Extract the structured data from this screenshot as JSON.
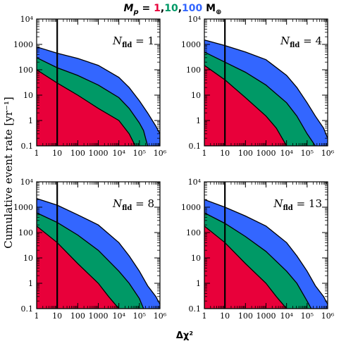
{
  "title": {
    "prefix": "M",
    "prefix_sub": "p",
    "equals": " = ",
    "v1": "1",
    "c1": ",",
    "v2": "10",
    "c2": ",",
    "v3": "100",
    "unit": " M",
    "unit_sub": "⊕",
    "colors": {
      "v1": "#e8003a",
      "v2": "#009966",
      "v3": "#3366ff",
      "text": "#000000"
    }
  },
  "ylabel": "Cumulative event rate [yr⁻¹]",
  "xlabel": "Δχ²",
  "xticks": [
    "1",
    "10",
    "100",
    "1000",
    "10⁴",
    "10⁵",
    "10⁶"
  ],
  "yticks": [
    "0.1",
    "1",
    "10",
    "100",
    "1000",
    "10⁴"
  ],
  "colors": {
    "red": "#e8003a",
    "green": "#009966",
    "blue": "#3366ff",
    "line": "#000000"
  },
  "chart_data": [
    {
      "type": "area",
      "annotation": {
        "sym": "N",
        "sub": "fld",
        "eq": " = ",
        "val": "1"
      },
      "xscale": "log",
      "yscale": "log",
      "xlim": [
        1,
        1000000
      ],
      "ylim": [
        0.1,
        10000
      ],
      "vline_x": 10,
      "series": [
        {
          "color": "blue",
          "points": [
            [
              1,
              800
            ],
            [
              10,
              450
            ],
            [
              100,
              280
            ],
            [
              1000,
              150
            ],
            [
              10000,
              50
            ],
            [
              31623,
              20
            ],
            [
              100000,
              6
            ],
            [
              251189,
              2
            ],
            [
              630957,
              0.6
            ],
            [
              1000000,
              0.3
            ]
          ]
        },
        {
          "color": "green",
          "points": [
            [
              1,
              300
            ],
            [
              10,
              120
            ],
            [
              100,
              60
            ],
            [
              1000,
              25
            ],
            [
              10000,
              8
            ],
            [
              31623,
              3
            ],
            [
              100000,
              0.8
            ],
            [
              158489,
              0.4
            ],
            [
              251189,
              0.1
            ]
          ]
        },
        {
          "color": "red",
          "points": [
            [
              1,
              100
            ],
            [
              10,
              30
            ],
            [
              100,
              10
            ],
            [
              1000,
              3
            ],
            [
              10000,
              1
            ],
            [
              31623,
              0.3
            ],
            [
              63096,
              0.1
            ]
          ]
        }
      ]
    },
    {
      "type": "area",
      "annotation": {
        "sym": "N",
        "sub": "fld",
        "eq": " = ",
        "val": "4"
      },
      "xscale": "log",
      "yscale": "log",
      "xlim": [
        1,
        1000000
      ],
      "ylim": [
        0.1,
        10000
      ],
      "vline_x": 10,
      "series": [
        {
          "color": "blue",
          "points": [
            [
              1,
              1500
            ],
            [
              10,
              900
            ],
            [
              100,
              500
            ],
            [
              1000,
              250
            ],
            [
              10000,
              60
            ],
            [
              31623,
              20
            ],
            [
              100000,
              5
            ],
            [
              251189,
              1.5
            ],
            [
              630957,
              0.5
            ],
            [
              1000000,
              0.2
            ]
          ]
        },
        {
          "color": "green",
          "points": [
            [
              1,
              500
            ],
            [
              10,
              200
            ],
            [
              100,
              80
            ],
            [
              1000,
              25
            ],
            [
              10000,
              5
            ],
            [
              31623,
              1.5
            ],
            [
              100000,
              0.3
            ],
            [
              251189,
              0.1
            ]
          ]
        },
        {
          "color": "red",
          "points": [
            [
              1,
              150
            ],
            [
              10,
              40
            ],
            [
              100,
              8
            ],
            [
              1000,
              1.5
            ],
            [
              3162,
              0.5
            ],
            [
              10000,
              0.1
            ]
          ]
        }
      ]
    },
    {
      "type": "area",
      "annotation": {
        "sym": "N",
        "sub": "fld",
        "eq": " = ",
        "val": "8"
      },
      "xscale": "log",
      "yscale": "log",
      "xlim": [
        1,
        1000000
      ],
      "ylim": [
        0.1,
        10000
      ],
      "vline_x": 10,
      "series": [
        {
          "color": "blue",
          "points": [
            [
              1,
              2200
            ],
            [
              10,
              1200
            ],
            [
              100,
              500
            ],
            [
              1000,
              200
            ],
            [
              10000,
              40
            ],
            [
              31623,
              12
            ],
            [
              100000,
              3
            ],
            [
              251189,
              0.8
            ],
            [
              630957,
              0.3
            ],
            [
              1000000,
              0.15
            ]
          ]
        },
        {
          "color": "green",
          "points": [
            [
              1,
              600
            ],
            [
              10,
              250
            ],
            [
              100,
              80
            ],
            [
              1000,
              20
            ],
            [
              10000,
              3
            ],
            [
              31623,
              1
            ],
            [
              100000,
              0.25
            ],
            [
              158489,
              0.1
            ]
          ]
        },
        {
          "color": "red",
          "points": [
            [
              1,
              180
            ],
            [
              10,
              40
            ],
            [
              100,
              6
            ],
            [
              1000,
              1
            ],
            [
              3162,
              0.3
            ],
            [
              10000,
              0.1
            ]
          ]
        }
      ]
    },
    {
      "type": "area",
      "annotation": {
        "sym": "N",
        "sub": "fld",
        "eq": " = ",
        "val": "13"
      },
      "xscale": "log",
      "yscale": "log",
      "xlim": [
        1,
        1000000
      ],
      "ylim": [
        0.1,
        10000
      ],
      "vline_x": 10,
      "series": [
        {
          "color": "blue",
          "points": [
            [
              1,
              2000
            ],
            [
              10,
              1000
            ],
            [
              100,
              450
            ],
            [
              1000,
              180
            ],
            [
              10000,
              40
            ],
            [
              31623,
              12
            ],
            [
              100000,
              3
            ],
            [
              251189,
              0.8
            ],
            [
              630957,
              0.3
            ],
            [
              1000000,
              0.15
            ]
          ]
        },
        {
          "color": "green",
          "points": [
            [
              1,
              600
            ],
            [
              10,
              230
            ],
            [
              100,
              70
            ],
            [
              1000,
              18
            ],
            [
              10000,
              3
            ],
            [
              31623,
              1
            ],
            [
              100000,
              0.2
            ],
            [
              158489,
              0.1
            ]
          ]
        },
        {
          "color": "red",
          "points": [
            [
              1,
              180
            ],
            [
              10,
              40
            ],
            [
              100,
              6
            ],
            [
              1000,
              1
            ],
            [
              3162,
              0.3
            ],
            [
              10000,
              0.1
            ]
          ]
        }
      ]
    }
  ]
}
